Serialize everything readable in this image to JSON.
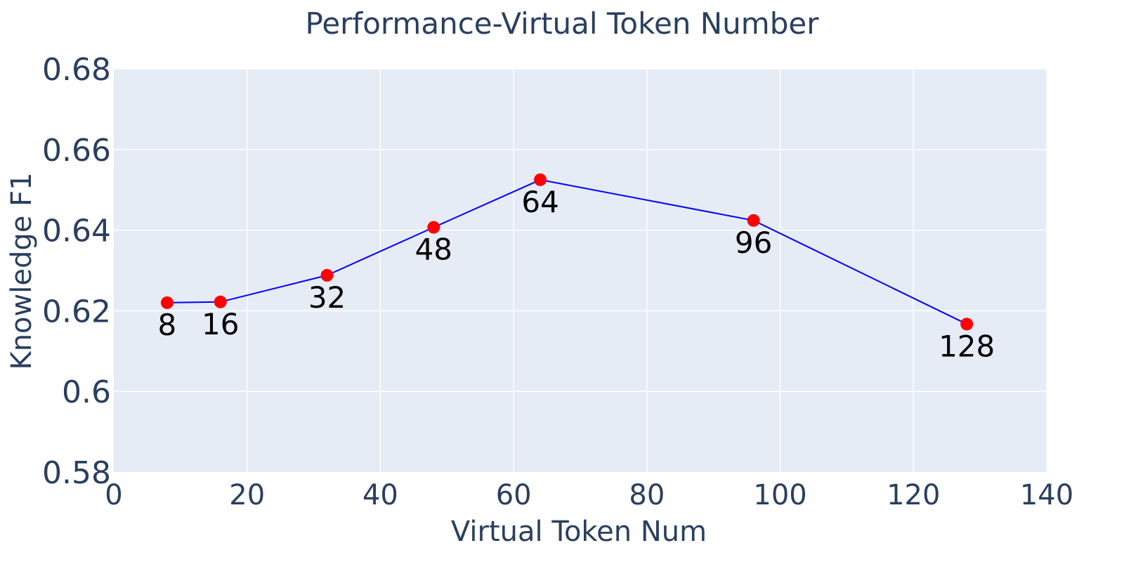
{
  "chart_data": {
    "type": "line",
    "title": "Performance-Virtual Token Number",
    "xlabel": "Virtual Token Num",
    "ylabel": "Knowledge F1",
    "xlim": [
      0,
      140
    ],
    "ylim": [
      0.58,
      0.68
    ],
    "x_ticks": [
      0,
      20,
      40,
      60,
      80,
      100,
      120,
      140
    ],
    "x_tick_labels": [
      "0",
      "20",
      "40",
      "60",
      "80",
      "100",
      "120",
      "140"
    ],
    "y_ticks": [
      0.58,
      0.6,
      0.62,
      0.64,
      0.66,
      0.68
    ],
    "y_tick_labels": [
      "0.58",
      "0.6",
      "0.62",
      "0.64",
      "0.66",
      "0.68"
    ],
    "grid": true,
    "series": [
      {
        "x": [
          8,
          16,
          32,
          48,
          64,
          96,
          128
        ],
        "y": [
          0.622,
          0.6222,
          0.6288,
          0.6407,
          0.6525,
          0.6424,
          0.6167
        ],
        "point_labels": [
          "8",
          "16",
          "32",
          "48",
          "64",
          "96",
          "128"
        ],
        "line_color": "#0000ff",
        "marker_color": "#ff0000"
      }
    ],
    "colors": {
      "plot_background": "#e5ecf6",
      "grid": "#ffffff",
      "text": "#2a3f5f"
    }
  }
}
